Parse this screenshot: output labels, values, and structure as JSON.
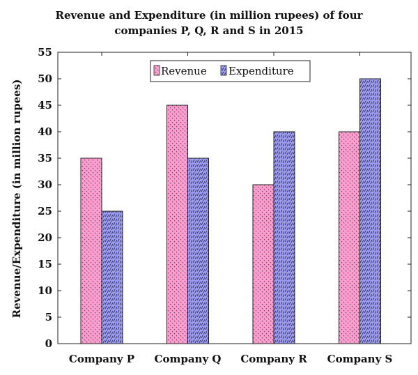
{
  "chart_data": {
    "type": "bar",
    "title_lines": [
      "Revenue and Expenditure (in million rupees) of four",
      "companies P, Q, R and S in 2015"
    ],
    "xlabel": "",
    "ylabel": "Revenue/Expenditure (in million rupees)",
    "categories": [
      "Company P",
      "Company Q",
      "Company R",
      "Company S"
    ],
    "series": [
      {
        "name": "Revenue",
        "values": [
          35,
          45,
          30,
          40
        ],
        "color": "#ff9dd1",
        "pattern": "dots"
      },
      {
        "name": "Expenditure",
        "values": [
          25,
          35,
          40,
          50
        ],
        "color": "#9c9cff",
        "pattern": "dashes"
      }
    ],
    "ylim": [
      0,
      55
    ],
    "yticks": [
      0,
      5,
      10,
      15,
      20,
      25,
      30,
      35,
      40,
      45,
      50,
      55
    ],
    "grid": false,
    "legend_position": "top-center"
  }
}
